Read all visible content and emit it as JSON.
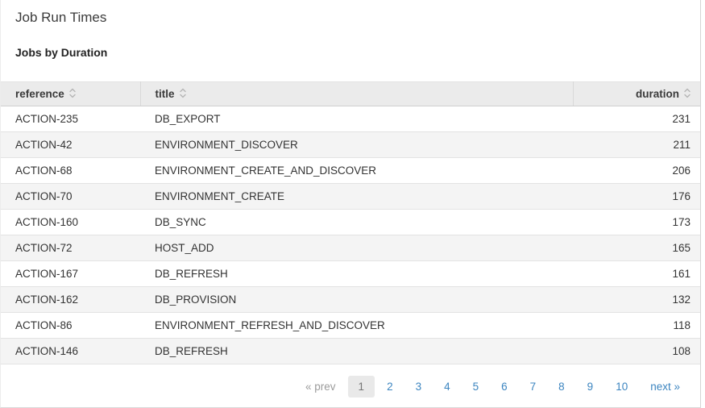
{
  "page": {
    "title": "Job Run Times",
    "subtitle": "Jobs by Duration"
  },
  "table": {
    "columns": [
      {
        "key": "reference",
        "label": "reference",
        "sortable": true,
        "align": "left"
      },
      {
        "key": "title",
        "label": "title",
        "sortable": true,
        "align": "left"
      },
      {
        "key": "duration",
        "label": "duration",
        "sortable": true,
        "align": "right"
      }
    ],
    "rows": [
      {
        "reference": "ACTION-235",
        "title": "DB_EXPORT",
        "duration": "231"
      },
      {
        "reference": "ACTION-42",
        "title": "ENVIRONMENT_DISCOVER",
        "duration": "211"
      },
      {
        "reference": "ACTION-68",
        "title": "ENVIRONMENT_CREATE_AND_DISCOVER",
        "duration": "206"
      },
      {
        "reference": "ACTION-70",
        "title": "ENVIRONMENT_CREATE",
        "duration": "176"
      },
      {
        "reference": "ACTION-160",
        "title": "DB_SYNC",
        "duration": "173"
      },
      {
        "reference": "ACTION-72",
        "title": "HOST_ADD",
        "duration": "165"
      },
      {
        "reference": "ACTION-167",
        "title": "DB_REFRESH",
        "duration": "161"
      },
      {
        "reference": "ACTION-162",
        "title": "DB_PROVISION",
        "duration": "132"
      },
      {
        "reference": "ACTION-86",
        "title": "ENVIRONMENT_REFRESH_AND_DISCOVER",
        "duration": "118"
      },
      {
        "reference": "ACTION-146",
        "title": "DB_REFRESH",
        "duration": "108"
      }
    ]
  },
  "pagination": {
    "prev_label": "« prev",
    "next_label": "next »",
    "current_page": "1",
    "pages": [
      "1",
      "2",
      "3",
      "4",
      "5",
      "6",
      "7",
      "8",
      "9",
      "10"
    ]
  },
  "colors": {
    "link_blue": "#3c85c0",
    "header_bg": "#ebebeb",
    "stripe_bg": "#f4f4f4",
    "body_text": "#333333",
    "muted_gray": "#9b9b9b",
    "current_page_bg": "#e9e9e9",
    "sort_icon_gray": "#b5b5b5"
  }
}
